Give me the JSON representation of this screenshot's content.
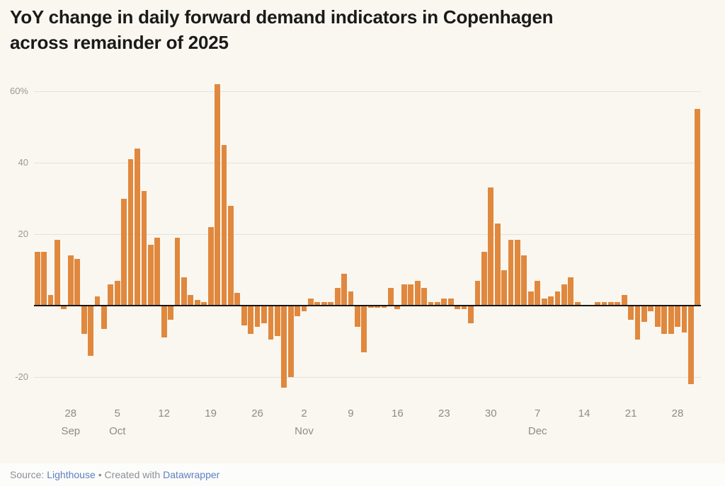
{
  "title": {
    "line1": "YoY change in daily forward demand indicators in Copenhagen",
    "line2": "across remainder of 2025"
  },
  "chart_data": {
    "type": "bar",
    "title": "YoY change in daily forward demand indicators in Copenhagen across remainder of 2025",
    "unit": "percent",
    "bar_color": "#e0883e",
    "grid": true,
    "ylim": [
      -27,
      66
    ],
    "gridline_values": [
      60,
      40,
      20,
      -20
    ],
    "yticks": [
      {
        "value": 60,
        "label": "60%"
      },
      {
        "value": 40,
        "label": "40"
      },
      {
        "value": 20,
        "label": "20"
      },
      {
        "value": -20,
        "label": "-20"
      }
    ],
    "xticks": [
      {
        "index": 5,
        "day": "28",
        "month": "Sep"
      },
      {
        "index": 12,
        "day": "5",
        "month": "Oct"
      },
      {
        "index": 19,
        "day": "12",
        "month": ""
      },
      {
        "index": 26,
        "day": "19",
        "month": ""
      },
      {
        "index": 33,
        "day": "26",
        "month": ""
      },
      {
        "index": 40,
        "day": "2",
        "month": "Nov"
      },
      {
        "index": 47,
        "day": "9",
        "month": ""
      },
      {
        "index": 54,
        "day": "16",
        "month": ""
      },
      {
        "index": 61,
        "day": "23",
        "month": ""
      },
      {
        "index": 68,
        "day": "30",
        "month": ""
      },
      {
        "index": 75,
        "day": "7",
        "month": "Dec"
      },
      {
        "index": 82,
        "day": "14",
        "month": ""
      },
      {
        "index": 89,
        "day": "21",
        "month": ""
      },
      {
        "index": 96,
        "day": "28",
        "month": ""
      }
    ],
    "x": [
      "Sep 23",
      "Sep 24",
      "Sep 25",
      "Sep 26",
      "Sep 27",
      "Sep 28",
      "Sep 29",
      "Sep 30",
      "Oct 1",
      "Oct 2",
      "Oct 3",
      "Oct 4",
      "Oct 5",
      "Oct 6",
      "Oct 7",
      "Oct 8",
      "Oct 9",
      "Oct 10",
      "Oct 11",
      "Oct 12",
      "Oct 13",
      "Oct 14",
      "Oct 15",
      "Oct 16",
      "Oct 17",
      "Oct 18",
      "Oct 19",
      "Oct 20",
      "Oct 21",
      "Oct 22",
      "Oct 23",
      "Oct 24",
      "Oct 25",
      "Oct 26",
      "Oct 27",
      "Oct 28",
      "Oct 29",
      "Oct 30",
      "Oct 31",
      "Nov 1",
      "Nov 2",
      "Nov 3",
      "Nov 4",
      "Nov 5",
      "Nov 6",
      "Nov 7",
      "Nov 8",
      "Nov 9",
      "Nov 10",
      "Nov 11",
      "Nov 12",
      "Nov 13",
      "Nov 14",
      "Nov 15",
      "Nov 16",
      "Nov 17",
      "Nov 18",
      "Nov 19",
      "Nov 20",
      "Nov 21",
      "Nov 22",
      "Nov 23",
      "Nov 24",
      "Nov 25",
      "Nov 26",
      "Nov 27",
      "Nov 28",
      "Nov 29",
      "Nov 30",
      "Dec 1",
      "Dec 2",
      "Dec 3",
      "Dec 4",
      "Dec 5",
      "Dec 6",
      "Dec 7",
      "Dec 8",
      "Dec 9",
      "Dec 10",
      "Dec 11",
      "Dec 12",
      "Dec 13",
      "Dec 14",
      "Dec 15",
      "Dec 16",
      "Dec 17",
      "Dec 18",
      "Dec 19",
      "Dec 20",
      "Dec 21",
      "Dec 22",
      "Dec 23",
      "Dec 24",
      "Dec 25",
      "Dec 26",
      "Dec 27",
      "Dec 28",
      "Dec 29",
      "Dec 30",
      "Dec 31"
    ],
    "values": [
      15,
      15,
      3,
      18.5,
      -1,
      14,
      13,
      -8,
      -14,
      2.5,
      -6.5,
      6,
      7,
      30,
      41,
      44,
      32,
      17,
      19,
      -9,
      -4,
      19,
      8,
      3,
      1.5,
      1,
      22,
      62,
      45,
      28,
      3.5,
      -5.5,
      -8,
      -6,
      -5,
      -9.5,
      -8.5,
      -23,
      -20,
      -3,
      -1.5,
      2,
      1,
      1,
      1,
      5,
      9,
      4,
      -6,
      -13,
      -0.5,
      -0.5,
      -0.5,
      5,
      -1,
      6,
      6,
      7,
      5,
      1,
      1,
      2,
      2,
      -1,
      -1,
      -5,
      7,
      15,
      33,
      23,
      10,
      18.5,
      18.5,
      14,
      4,
      7,
      2,
      2.5,
      4,
      6,
      8,
      1,
      0,
      0,
      1,
      1,
      1,
      1,
      3,
      -4,
      -9.5,
      -4.5,
      -1.5,
      -6,
      -8,
      -8,
      -6,
      -7.5,
      -22,
      55
    ]
  },
  "footer": {
    "source_label": "Source:",
    "source_link": "Lighthouse",
    "middle_text": "• Created with",
    "tool_link": "Datawrapper"
  }
}
